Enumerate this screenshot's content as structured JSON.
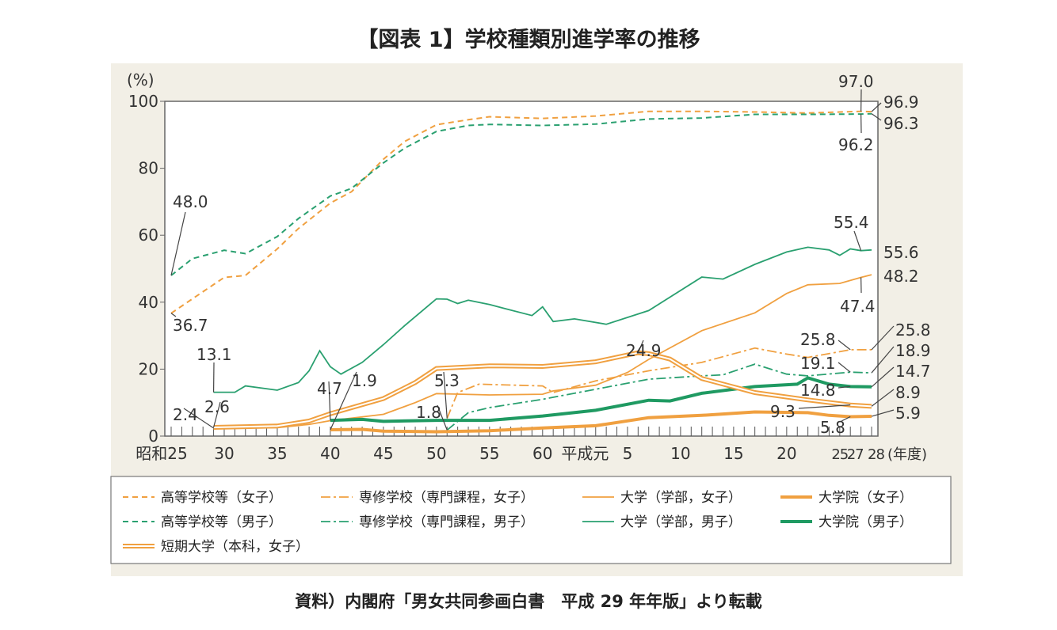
{
  "title": "【図表 1】学校種類別進学率の推移",
  "caption": "資料）内閣府「男女共同参画白書　平成 29 年年版」より転載",
  "chart_data": {
    "type": "line",
    "title": "【図表 1】学校種類別進学率の推移",
    "ylabel": "(%)",
    "xlabel": "(年度)",
    "ylim": [
      0,
      100
    ],
    "xlim": [
      1950,
      2016
    ],
    "yticks": [
      0,
      20,
      40,
      60,
      80,
      100
    ],
    "xticks": [
      {
        "x": 1950,
        "label": "昭和25"
      },
      {
        "x": 1955,
        "label": "30"
      },
      {
        "x": 1960,
        "label": "35"
      },
      {
        "x": 1965,
        "label": "40"
      },
      {
        "x": 1970,
        "label": "45"
      },
      {
        "x": 1975,
        "label": "50"
      },
      {
        "x": 1980,
        "label": "55"
      },
      {
        "x": 1985,
        "label": "60"
      },
      {
        "x": 1989,
        "label": "平成元"
      },
      {
        "x": 1993,
        "label": "5"
      },
      {
        "x": 1998,
        "label": "10"
      },
      {
        "x": 2003,
        "label": "15"
      },
      {
        "x": 2008,
        "label": "20"
      },
      {
        "x": 2013,
        "label": "25"
      },
      {
        "x": 2015,
        "label": "27"
      },
      {
        "x": 2016,
        "label": "28"
      }
    ],
    "grid": false,
    "legend_placement": "bottom",
    "series": [
      {
        "name": "高等学校等（女子）",
        "color": "#f0a040",
        "style": "dashed",
        "points": [
          [
            1950,
            36.7
          ],
          [
            1952,
            41
          ],
          [
            1955,
            47.4
          ],
          [
            1957,
            48
          ],
          [
            1960,
            55.9
          ],
          [
            1962,
            62
          ],
          [
            1965,
            69.6
          ],
          [
            1967,
            73
          ],
          [
            1970,
            82.7
          ],
          [
            1972,
            88
          ],
          [
            1975,
            93.0
          ],
          [
            1978,
            94.5
          ],
          [
            1980,
            95.4
          ],
          [
            1985,
            94.9
          ],
          [
            1990,
            95.6
          ],
          [
            1995,
            97.0
          ],
          [
            2000,
            97.0
          ],
          [
            2005,
            96.8
          ],
          [
            2010,
            96.5
          ],
          [
            2015,
            97.0
          ],
          [
            2016,
            96.9
          ]
        ]
      },
      {
        "name": "高等学校等（男子）",
        "color": "#2aa070",
        "style": "dashed",
        "points": [
          [
            1950,
            48.0
          ],
          [
            1952,
            53
          ],
          [
            1955,
            55.5
          ],
          [
            1957,
            54.5
          ],
          [
            1960,
            59.6
          ],
          [
            1962,
            65
          ],
          [
            1965,
            71.7
          ],
          [
            1967,
            74
          ],
          [
            1970,
            81.6
          ],
          [
            1972,
            86
          ],
          [
            1975,
            91.0
          ],
          [
            1978,
            92.8
          ],
          [
            1980,
            93.1
          ],
          [
            1985,
            92.8
          ],
          [
            1990,
            93.2
          ],
          [
            1995,
            94.7
          ],
          [
            2000,
            95.0
          ],
          [
            2005,
            96.1
          ],
          [
            2010,
            96.1
          ],
          [
            2015,
            96.2
          ],
          [
            2016,
            96.3
          ]
        ]
      },
      {
        "name": "専修学校（専門課程，女子）",
        "color": "#f0a040",
        "style": "dashdot",
        "points": [
          [
            1976,
            5.3
          ],
          [
            1977,
            13
          ],
          [
            1979,
            15.5
          ],
          [
            1985,
            15
          ],
          [
            1986,
            13
          ],
          [
            1990,
            16.5
          ],
          [
            1995,
            19.5
          ],
          [
            2000,
            22
          ],
          [
            2005,
            26.3
          ],
          [
            2008,
            24.5
          ],
          [
            2010,
            23.5
          ],
          [
            2014,
            25.8
          ],
          [
            2016,
            25.8
          ]
        ]
      },
      {
        "name": "専修学校（専門課程，男子）",
        "color": "#2aa070",
        "style": "dashdot",
        "points": [
          [
            1976,
            1.8
          ],
          [
            1978,
            7
          ],
          [
            1980,
            8.5
          ],
          [
            1985,
            11
          ],
          [
            1990,
            14
          ],
          [
            1995,
            17
          ],
          [
            2000,
            18
          ],
          [
            2002,
            18.3
          ],
          [
            2005,
            21.5
          ],
          [
            2008,
            18.5
          ],
          [
            2010,
            18
          ],
          [
            2014,
            19.1
          ],
          [
            2016,
            18.9
          ]
        ]
      },
      {
        "name": "大学（学部，女子）",
        "color": "#f0a040",
        "style": "thin",
        "points": [
          [
            1954,
            2.4
          ],
          [
            1960,
            2.5
          ],
          [
            1963,
            3.5
          ],
          [
            1965,
            4.6
          ],
          [
            1970,
            6.5
          ],
          [
            1973,
            10
          ],
          [
            1975,
            12.7
          ],
          [
            1980,
            12.3
          ],
          [
            1985,
            12.5
          ],
          [
            1986,
            13.5
          ],
          [
            1990,
            15.2
          ],
          [
            1993,
            19
          ],
          [
            1995,
            22.9
          ],
          [
            2000,
            31.5
          ],
          [
            2005,
            36.8
          ],
          [
            2008,
            42.6
          ],
          [
            2010,
            45.2
          ],
          [
            2013,
            45.6
          ],
          [
            2015,
            47.4
          ],
          [
            2016,
            48.2
          ]
        ]
      },
      {
        "name": "大学（学部，男子）",
        "color": "#2aa070",
        "style": "thin",
        "points": [
          [
            1954,
            13.1
          ],
          [
            1956,
            13.1
          ],
          [
            1957,
            15
          ],
          [
            1960,
            13.7
          ],
          [
            1962,
            16
          ],
          [
            1963,
            19.5
          ],
          [
            1964,
            25.5
          ],
          [
            1965,
            20.7
          ],
          [
            1966,
            18.5
          ],
          [
            1968,
            22
          ],
          [
            1970,
            27.3
          ],
          [
            1972,
            33
          ],
          [
            1975,
            41.0
          ],
          [
            1976,
            40.9
          ],
          [
            1977,
            39.6
          ],
          [
            1978,
            40.6
          ],
          [
            1980,
            39.3
          ],
          [
            1984,
            36
          ],
          [
            1985,
            38.6
          ],
          [
            1986,
            34.2
          ],
          [
            1988,
            35
          ],
          [
            1991,
            33.4
          ],
          [
            1995,
            37.5
          ],
          [
            2000,
            47.5
          ],
          [
            2002,
            46.9
          ],
          [
            2005,
            51.3
          ],
          [
            2008,
            55
          ],
          [
            2010,
            56.4
          ],
          [
            2012,
            55.6
          ],
          [
            2013,
            54.0
          ],
          [
            2014,
            55.9
          ],
          [
            2015,
            55.4
          ],
          [
            2016,
            55.6
          ]
        ]
      },
      {
        "name": "大学院（女子）",
        "color": "#f0a040",
        "style": "thick",
        "points": [
          [
            1965,
            1.9
          ],
          [
            1968,
            2
          ],
          [
            1970,
            1.5
          ],
          [
            1975,
            1.3
          ],
          [
            1980,
            1.6
          ],
          [
            1985,
            2.4
          ],
          [
            1990,
            3.1
          ],
          [
            1995,
            5.5
          ],
          [
            2000,
            6.2
          ],
          [
            2005,
            7.2
          ],
          [
            2010,
            7.0
          ],
          [
            2012,
            6.2
          ],
          [
            2014,
            5.8
          ],
          [
            2016,
            5.9
          ]
        ]
      },
      {
        "name": "大学院（男子）",
        "color": "#1f9a62",
        "style": "thick",
        "points": [
          [
            1965,
            4.7
          ],
          [
            1968,
            5
          ],
          [
            1970,
            4.4
          ],
          [
            1975,
            4.7
          ],
          [
            1980,
            4.7
          ],
          [
            1985,
            6
          ],
          [
            1990,
            7.7
          ],
          [
            1995,
            10.7
          ],
          [
            1997,
            10.5
          ],
          [
            2000,
            12.8
          ],
          [
            2005,
            14.8
          ],
          [
            2009,
            15.5
          ],
          [
            2010,
            17.4
          ],
          [
            2012,
            15.5
          ],
          [
            2014,
            14.8
          ],
          [
            2016,
            14.7
          ]
        ]
      },
      {
        "name": "短期大学（本科，女子）",
        "color": "#f0a040",
        "style": "double",
        "points": [
          [
            1954,
            2.6
          ],
          [
            1960,
            3.0
          ],
          [
            1963,
            4.5
          ],
          [
            1965,
            6.7
          ],
          [
            1970,
            11.2
          ],
          [
            1973,
            16
          ],
          [
            1975,
            20.2
          ],
          [
            1980,
            21.0
          ],
          [
            1985,
            20.8
          ],
          [
            1990,
            22.2
          ],
          [
            1994,
            24.9
          ],
          [
            1995,
            24.6
          ],
          [
            1997,
            23
          ],
          [
            2000,
            17.2
          ],
          [
            2005,
            13.0
          ],
          [
            2010,
            10.8
          ],
          [
            2014,
            9.3
          ],
          [
            2016,
            8.9
          ]
        ]
      }
    ],
    "annotations": [
      {
        "text": "48.0",
        "x": 1950,
        "y": 48.0
      },
      {
        "text": "36.7",
        "x": 1950,
        "y": 36.7
      },
      {
        "text": "13.1",
        "x": 1954,
        "y": 13.1
      },
      {
        "text": "2.4",
        "x": 1954,
        "y": 2.4
      },
      {
        "text": "2.6",
        "x": 1954,
        "y": 2.6
      },
      {
        "text": "4.7",
        "x": 1965,
        "y": 4.7
      },
      {
        "text": "1.9",
        "x": 1965,
        "y": 1.9
      },
      {
        "text": "5.3",
        "x": 1976,
        "y": 5.3
      },
      {
        "text": "1.8",
        "x": 1976,
        "y": 1.8
      },
      {
        "text": "24.9",
        "x": 1994,
        "y": 24.9
      },
      {
        "text": "97.0",
        "x": 2015,
        "y": 97.0
      },
      {
        "text": "96.9",
        "x": 2016,
        "y": 96.9
      },
      {
        "text": "96.3",
        "x": 2016,
        "y": 96.3
      },
      {
        "text": "96.2",
        "x": 2015,
        "y": 96.2
      },
      {
        "text": "55.4",
        "x": 2015,
        "y": 55.4
      },
      {
        "text": "55.6",
        "x": 2016,
        "y": 55.6
      },
      {
        "text": "48.2",
        "x": 2016,
        "y": 48.2
      },
      {
        "text": "47.4",
        "x": 2015,
        "y": 47.4
      },
      {
        "text": "25.8",
        "x": 2014,
        "y": 25.8
      },
      {
        "text": "25.8",
        "x": 2016,
        "y": 25.8
      },
      {
        "text": "18.9",
        "x": 2016,
        "y": 18.9
      },
      {
        "text": "19.1",
        "x": 2014,
        "y": 19.1
      },
      {
        "text": "14.7",
        "x": 2016,
        "y": 14.7
      },
      {
        "text": "14.8",
        "x": 2014,
        "y": 14.8
      },
      {
        "text": "8.9",
        "x": 2016,
        "y": 8.9
      },
      {
        "text": "9.3",
        "x": 2014,
        "y": 9.3
      },
      {
        "text": "5.9",
        "x": 2016,
        "y": 5.9
      },
      {
        "text": "5.8",
        "x": 2014,
        "y": 5.8
      }
    ],
    "legend_order": [
      0,
      2,
      4,
      6,
      1,
      3,
      5,
      7,
      8
    ]
  }
}
